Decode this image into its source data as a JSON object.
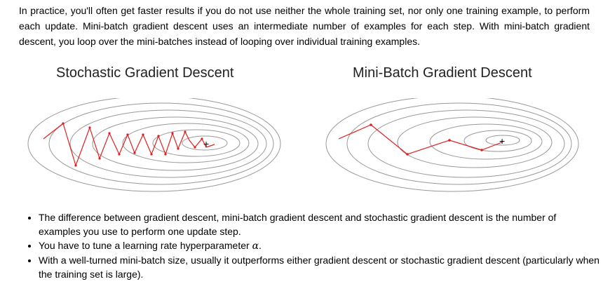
{
  "intro": {
    "paragraph": "In practice, you'll often get faster results if you do not use neither the whole training set, nor only one training example, to perform each update. Mini-batch gradient descent uses an intermediate number of examples for each step. With mini-batch gradient descent, you loop over the mini-batches instead of looping over individual training examples."
  },
  "figures": {
    "left": {
      "title": "Stochastic Gradient Descent",
      "minimum_marker": "+"
    },
    "right": {
      "title": "Mini-Batch Gradient Descent",
      "minimum_marker": "+"
    },
    "contour_color": "#999999",
    "path_color": "#e02020"
  },
  "bullets": {
    "item1": "The difference between gradient descent, mini-batch gradient descent and stochastic gradient descent is the number of examples you use to perform one update step.",
    "item2_prefix": "You have to tune a learning rate hyperparameter ",
    "item2_symbol": "α",
    "item2_suffix": ".",
    "item3": "With a well-turned mini-batch size, usually it outperforms either gradient descent or stochastic gradient descent (particularly when the training set is large)."
  }
}
